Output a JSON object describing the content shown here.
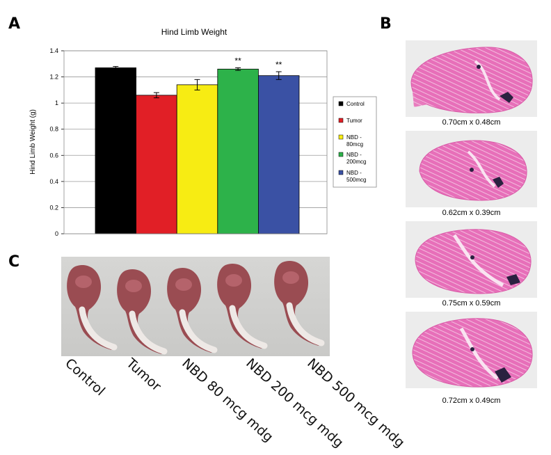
{
  "panels": {
    "a": "A",
    "b": "B",
    "c": "C"
  },
  "chart_data": {
    "type": "bar",
    "title": "Hind Limb Weight",
    "ylabel": "Hind Limb Weight (g)",
    "xlabel": "",
    "ylim": [
      0,
      1.4
    ],
    "yticks": [
      "0",
      "0.2",
      "0.4",
      "0.6",
      "0.8",
      "1",
      "1.2",
      "1.4"
    ],
    "grid": true,
    "legend_position": "right",
    "series": [
      {
        "name": "Control",
        "value": 1.27,
        "error": 0.01,
        "color": "#000000",
        "annotation": ""
      },
      {
        "name": "Tumor",
        "value": 1.06,
        "error": 0.02,
        "color": "#e11f26",
        "annotation": ""
      },
      {
        "name": "NBD - 80mcg",
        "value": 1.14,
        "error": 0.04,
        "color": "#f7ec13",
        "annotation": ""
      },
      {
        "name": "NBD - 200mcg",
        "value": 1.26,
        "error": 0.01,
        "color": "#2db24a",
        "annotation": "**"
      },
      {
        "name": "NBD - 500mcg",
        "value": 1.21,
        "error": 0.03,
        "color": "#3a51a4",
        "annotation": "**"
      }
    ]
  },
  "legend": {
    "entries": [
      {
        "lines": [
          "Control"
        ],
        "color": "#000000"
      },
      {
        "lines": [
          "Tumor"
        ],
        "color": "#e11f26"
      },
      {
        "lines": [
          "NBD -",
          "80mcg"
        ],
        "color": "#f7ec13"
      },
      {
        "lines": [
          "NBD -",
          "200mcg"
        ],
        "color": "#2db24a"
      },
      {
        "lines": [
          "NBD -",
          "500mcg"
        ],
        "color": "#3a51a4"
      }
    ]
  },
  "histology": {
    "captions": [
      "0.70cm x 0.48cm",
      "0.62cm x 0.39cm",
      "0.75cm x 0.59cm",
      "0.72cm x 0.49cm"
    ]
  },
  "photo": {
    "labels": [
      "Control",
      "Tumor",
      "NBD 80 mcg mdg",
      "NBD 200 mcg mdg",
      "NBD 500 mcg mdg"
    ]
  }
}
